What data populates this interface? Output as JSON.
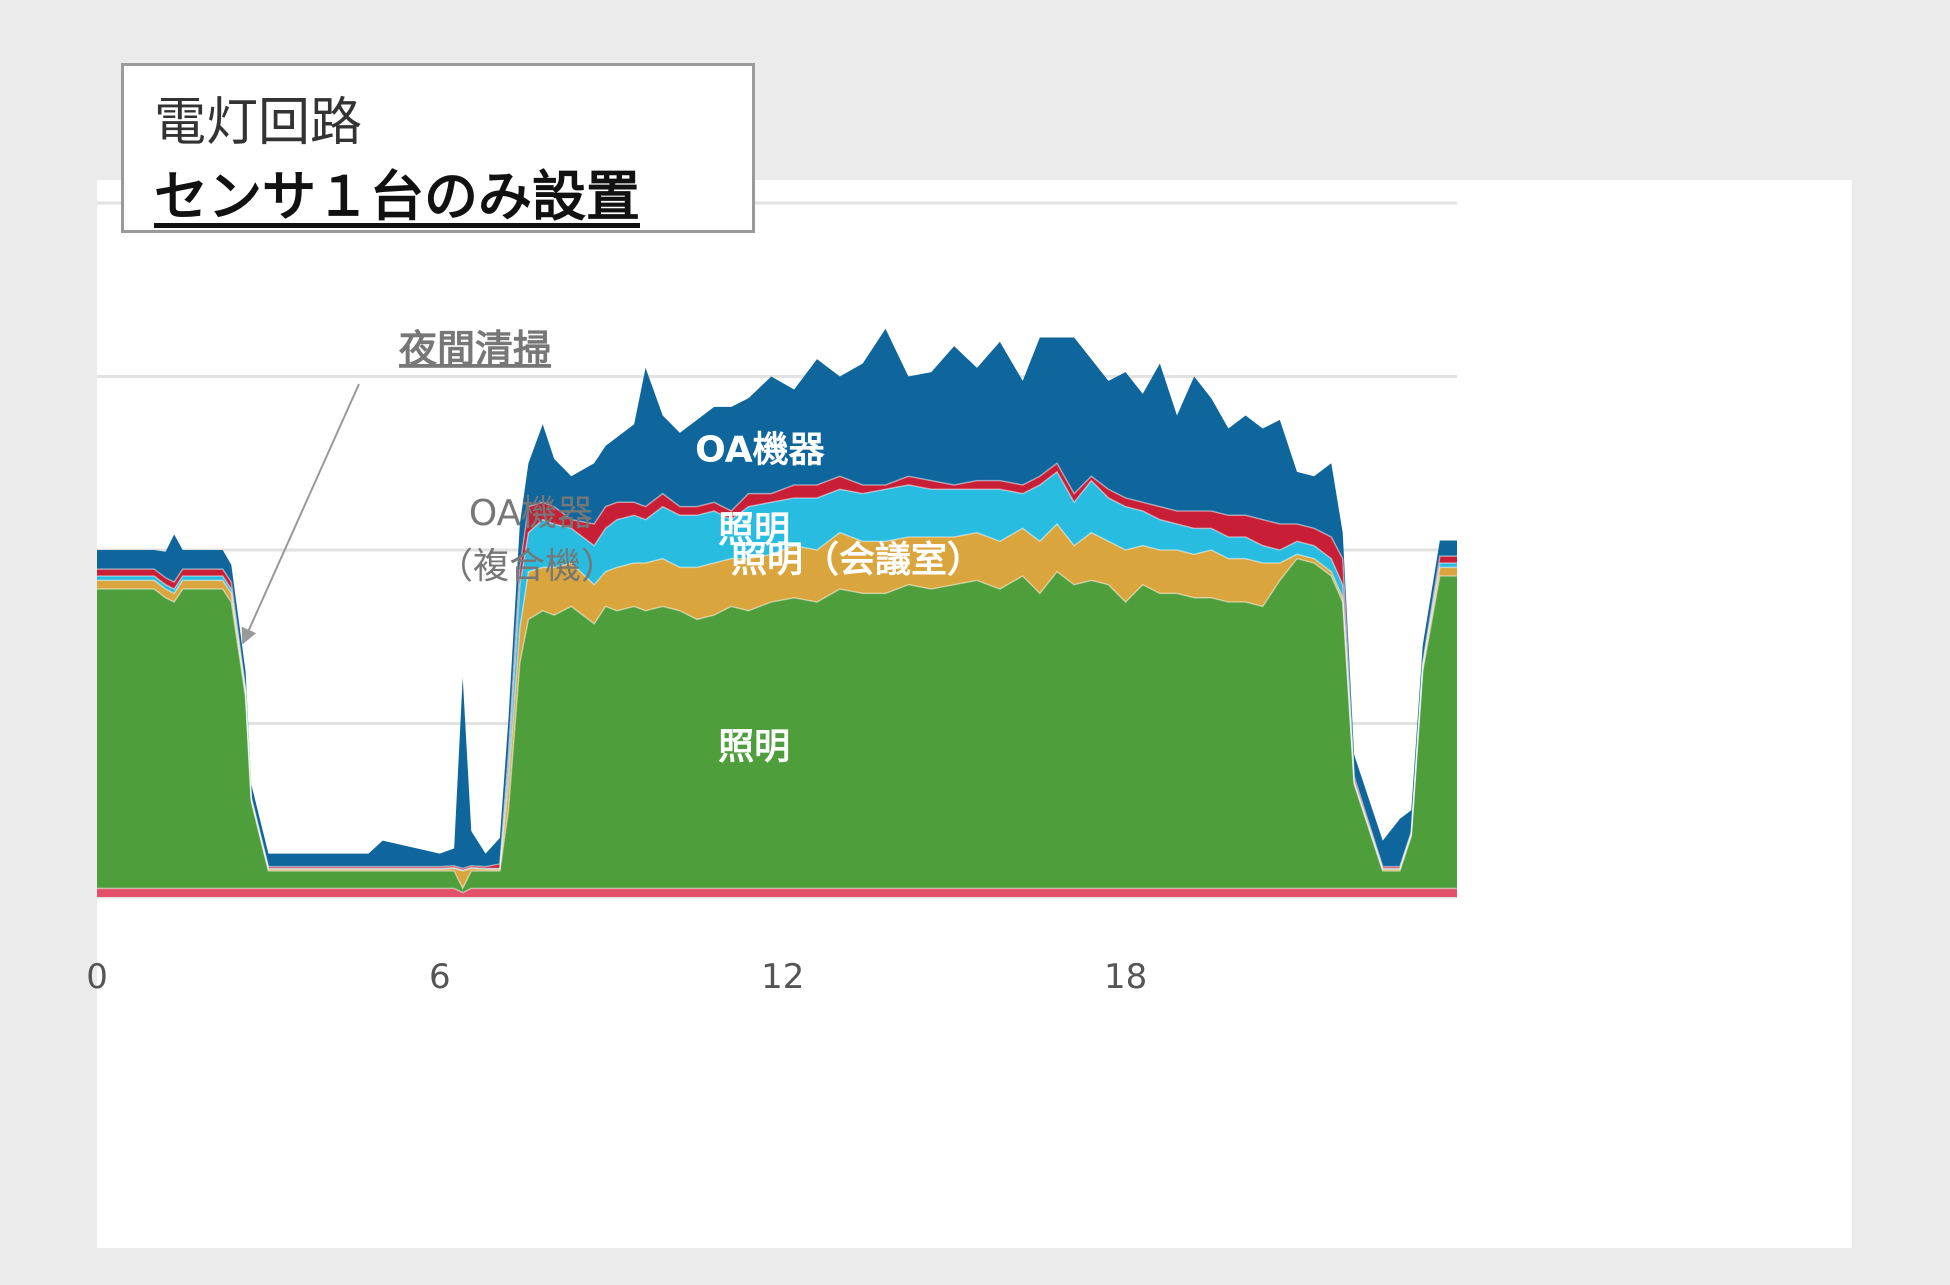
{
  "title": {
    "line1": "電灯回路",
    "line2": "センサ１台のみ設置"
  },
  "annotations": {
    "night_cleaning": "夜間清掃",
    "oa_equipment_line1": "OA機器",
    "oa_equipment_line2": "（複合機）"
  },
  "colors": {
    "background": "#ebebeb",
    "panel": "#ffffff",
    "grid": "#e2e2e2",
    "lighting_green": "#4e9e3c",
    "meeting_room_orange": "#dba53d",
    "lighting_cyan": "#29bce1",
    "red": "#c81f37",
    "oa_blue": "#0e669c",
    "baseline_pink": "#e4506a",
    "annotation_gray": "#777777",
    "tick_gray": "#555555"
  },
  "chart_data": {
    "type": "area",
    "stacked": true,
    "x_ticks": [
      "0",
      "6",
      "12",
      "18"
    ],
    "xlim": [
      0,
      23.8
    ],
    "ylim": [
      0,
      8
    ],
    "grid": true,
    "series_labels": [
      {
        "label": "OA機器",
        "series": 4,
        "x": 11.6,
        "y_offset": 0.55
      },
      {
        "label": "照明",
        "series": 3,
        "x": 11.5,
        "y_offset": 0
      },
      {
        "label": "照明（会議室）",
        "series": 2,
        "x": 13.3,
        "y_offset": 0.05
      },
      {
        "label": "照明",
        "series": 1,
        "x": 11.5,
        "y_offset": 0
      }
    ],
    "x": [
      0,
      1,
      1.2,
      1.35,
      1.5,
      2.2,
      2.35,
      2.6,
      2.7,
      3.0,
      4.5,
      4.75,
      5,
      6.0,
      6.25,
      6.4,
      6.55,
      6.8,
      7.05,
      7.2,
      7.4,
      7.55,
      7.8,
      8.0,
      8.3,
      8.7,
      8.9,
      9.1,
      9.4,
      9.6,
      9.9,
      10.2,
      10.5,
      10.8,
      11.1,
      11.4,
      11.8,
      12.2,
      12.6,
      13.0,
      13.4,
      13.8,
      14.2,
      14.6,
      15.0,
      15.4,
      15.8,
      16.2,
      16.5,
      16.8,
      17.1,
      17.4,
      17.7,
      18.0,
      18.3,
      18.6,
      18.9,
      19.2,
      19.5,
      19.8,
      20.1,
      20.4,
      20.7,
      21.0,
      21.3,
      21.6,
      21.8,
      22.0,
      22.5,
      22.8,
      23.0,
      23.2,
      23.5,
      23.8
    ],
    "series": [
      {
        "name": "",
        "color": "#e4506a",
        "values": [
          0.1,
          0.1,
          0.1,
          0.1,
          0.1,
          0.1,
          0.1,
          0.1,
          0.1,
          0.1,
          0.1,
          0.1,
          0.1,
          0.1,
          0.1,
          0.05,
          0.1,
          0.1,
          0.1,
          0.1,
          0.1,
          0.1,
          0.1,
          0.1,
          0.1,
          0.1,
          0.1,
          0.1,
          0.1,
          0.1,
          0.1,
          0.1,
          0.1,
          0.1,
          0.1,
          0.1,
          0.1,
          0.1,
          0.1,
          0.1,
          0.1,
          0.1,
          0.1,
          0.1,
          0.1,
          0.1,
          0.1,
          0.1,
          0.1,
          0.1,
          0.1,
          0.1,
          0.1,
          0.1,
          0.1,
          0.1,
          0.1,
          0.1,
          0.1,
          0.1,
          0.1,
          0.1,
          0.1,
          0.1,
          0.1,
          0.1,
          0.1,
          0.1,
          0.1,
          0.1,
          0.1,
          0.1,
          0.1,
          0.1
        ]
      },
      {
        "name": "",
        "color": "#4e9e3c",
        "values": [
          3.45,
          3.45,
          3.35,
          3.3,
          3.45,
          3.45,
          3.3,
          2.2,
          1.0,
          0.2,
          0.2,
          0.2,
          0.2,
          0.2,
          0.2,
          0.05,
          0.2,
          0.2,
          0.2,
          0.9,
          2.6,
          3.1,
          3.2,
          3.15,
          3.25,
          3.05,
          3.25,
          3.2,
          3.25,
          3.2,
          3.25,
          3.2,
          3.1,
          3.15,
          3.25,
          3.2,
          3.3,
          3.35,
          3.3,
          3.45,
          3.4,
          3.4,
          3.5,
          3.45,
          3.5,
          3.55,
          3.45,
          3.6,
          3.4,
          3.65,
          3.5,
          3.55,
          3.5,
          3.3,
          3.5,
          3.4,
          3.4,
          3.35,
          3.35,
          3.3,
          3.3,
          3.25,
          3.55,
          3.8,
          3.75,
          3.6,
          3.3,
          1.2,
          0.2,
          0.2,
          0.6,
          2.5,
          3.6,
          3.6
        ]
      },
      {
        "name": "",
        "color": "#dba53d",
        "values": [
          0.1,
          0.1,
          0.1,
          0.1,
          0.1,
          0.1,
          0.1,
          0.05,
          0.02,
          0.02,
          0.02,
          0.02,
          0.02,
          0.02,
          0.03,
          0.2,
          0.03,
          0.02,
          0.02,
          0.3,
          0.4,
          0.55,
          0.5,
          0.55,
          0.5,
          0.45,
          0.4,
          0.5,
          0.5,
          0.55,
          0.55,
          0.5,
          0.6,
          0.6,
          0.55,
          0.6,
          0.55,
          0.6,
          0.6,
          0.65,
          0.6,
          0.6,
          0.55,
          0.6,
          0.55,
          0.55,
          0.55,
          0.55,
          0.6,
          0.55,
          0.45,
          0.55,
          0.5,
          0.6,
          0.45,
          0.5,
          0.5,
          0.5,
          0.55,
          0.5,
          0.5,
          0.5,
          0.2,
          0.05,
          0.05,
          0.05,
          0.05,
          0.02,
          0.02,
          0.02,
          0.02,
          0.05,
          0.1,
          0.1
        ]
      },
      {
        "name": "",
        "color": "#29bce1",
        "values": [
          0.05,
          0.05,
          0.05,
          0.05,
          0.05,
          0.05,
          0.05,
          0.02,
          0.01,
          0.01,
          0.01,
          0.01,
          0.01,
          0.01,
          0.01,
          0.01,
          0.01,
          0.01,
          0.01,
          0.2,
          0.5,
          0.45,
          0.55,
          0.5,
          0.4,
          0.45,
          0.5,
          0.55,
          0.55,
          0.5,
          0.6,
          0.6,
          0.6,
          0.6,
          0.45,
          0.6,
          0.6,
          0.55,
          0.6,
          0.5,
          0.55,
          0.6,
          0.6,
          0.55,
          0.55,
          0.5,
          0.6,
          0.4,
          0.65,
          0.6,
          0.5,
          0.6,
          0.5,
          0.5,
          0.4,
          0.35,
          0.3,
          0.3,
          0.25,
          0.25,
          0.25,
          0.2,
          0.15,
          0.15,
          0.15,
          0.15,
          0.15,
          0.02,
          0.01,
          0.01,
          0.01,
          0.02,
          0.05,
          0.05
        ]
      },
      {
        "name": "",
        "color": "#c81f37",
        "values": [
          0.08,
          0.08,
          0.08,
          0.08,
          0.08,
          0.08,
          0.08,
          0.03,
          0.02,
          0.02,
          0.02,
          0.02,
          0.02,
          0.02,
          0.02,
          0.02,
          0.02,
          0.02,
          0.05,
          0.15,
          0.2,
          0.3,
          0.2,
          0.2,
          0.1,
          0.25,
          0.25,
          0.2,
          0.15,
          0.15,
          0.15,
          0.1,
          0.1,
          0.1,
          0.1,
          0.15,
          0.1,
          0.15,
          0.15,
          0.15,
          0.1,
          0.05,
          0.1,
          0.1,
          0.05,
          0.1,
          0.1,
          0.1,
          0.1,
          0.1,
          0.1,
          0.05,
          0.1,
          0.1,
          0.1,
          0.15,
          0.15,
          0.2,
          0.2,
          0.25,
          0.25,
          0.3,
          0.3,
          0.2,
          0.2,
          0.25,
          0.3,
          0.05,
          0.02,
          0.02,
          0.02,
          0.03,
          0.08,
          0.08
        ]
      },
      {
        "name": "",
        "color": "#0e669c",
        "values": [
          0.22,
          0.22,
          0.3,
          0.55,
          0.22,
          0.22,
          0.2,
          0.2,
          0.15,
          0.15,
          0.15,
          0.15,
          0.3,
          0.15,
          0.2,
          2.2,
          0.4,
          0.15,
          0.3,
          0.4,
          0.5,
          0.5,
          0.9,
          0.55,
          0.5,
          0.7,
          0.7,
          0.75,
          0.9,
          1.6,
          0.9,
          0.85,
          1.0,
          1.1,
          1.2,
          1.1,
          1.35,
          1.1,
          1.45,
          1.15,
          1.4,
          1.8,
          1.15,
          1.25,
          1.6,
          1.3,
          1.6,
          1.2,
          1.6,
          1.45,
          1.8,
          1.35,
          1.25,
          1.45,
          1.25,
          1.65,
          1.1,
          1.55,
          1.3,
          1.0,
          1.15,
          1.05,
          1.2,
          0.6,
          0.6,
          0.85,
          0.3,
          0.25,
          0.3,
          0.55,
          0.25,
          0.2,
          0.18,
          0.18
        ]
      }
    ]
  }
}
